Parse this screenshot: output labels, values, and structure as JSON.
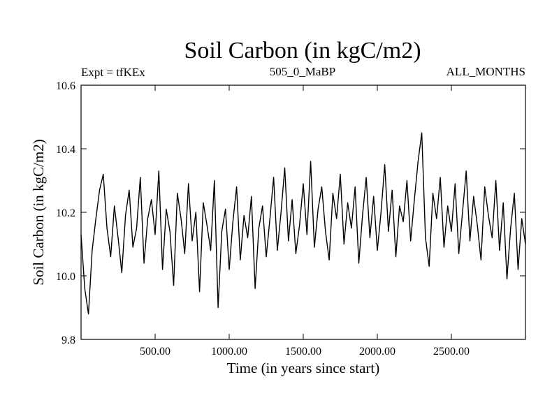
{
  "chart_data": {
    "type": "line",
    "title": "Soil Carbon (in kgC/m2)",
    "subtitle_left": "Expt = tfKEx",
    "subtitle_center": "505_0_MaBP",
    "subtitle_right": "ALL_MONTHS",
    "xlabel": "Time (in years since start)",
    "ylabel": "Soil Carbon (in kgC/m2)",
    "xlim": [
      0,
      3000
    ],
    "ylim": [
      9.8,
      10.6
    ],
    "x_ticks": [
      500,
      1000,
      1500,
      2000,
      2500
    ],
    "x_tick_labels": [
      "500.00",
      "1000.00",
      "1500.00",
      "2000.00",
      "2500.00"
    ],
    "y_ticks": [
      9.8,
      10.0,
      10.2,
      10.4,
      10.6
    ],
    "y_tick_labels": [
      "9.8",
      "10.0",
      "10.2",
      "10.4",
      "10.6"
    ],
    "grid": false,
    "line_color": "#000000",
    "series": [
      {
        "x": [
          0,
          25,
          50,
          75,
          100,
          125,
          150,
          175,
          200,
          225,
          250,
          275,
          300,
          325,
          350,
          375,
          400,
          425,
          450,
          475,
          500,
          525,
          550,
          575,
          600,
          625,
          650,
          675,
          700,
          725,
          750,
          775,
          800,
          825,
          850,
          875,
          900,
          925,
          950,
          975,
          1000,
          1025,
          1050,
          1075,
          1100,
          1125,
          1150,
          1175,
          1200,
          1225,
          1250,
          1275,
          1300,
          1325,
          1350,
          1375,
          1400,
          1425,
          1450,
          1475,
          1500,
          1525,
          1550,
          1575,
          1600,
          1625,
          1650,
          1675,
          1700,
          1725,
          1750,
          1775,
          1800,
          1825,
          1850,
          1875,
          1900,
          1925,
          1950,
          1975,
          2000,
          2025,
          2050,
          2075,
          2100,
          2125,
          2150,
          2175,
          2200,
          2225,
          2250,
          2275,
          2300,
          2325,
          2350,
          2375,
          2400,
          2425,
          2450,
          2475,
          2500,
          2525,
          2550,
          2575,
          2600,
          2625,
          2650,
          2675,
          2700,
          2725,
          2750,
          2775,
          2800,
          2825,
          2850,
          2875,
          2900,
          2925,
          2950,
          2975,
          3000
        ],
        "y": [
          10.13,
          9.96,
          9.88,
          10.08,
          10.18,
          10.27,
          10.32,
          10.15,
          10.06,
          10.22,
          10.12,
          10.01,
          10.19,
          10.27,
          10.09,
          10.15,
          10.31,
          10.04,
          10.18,
          10.24,
          10.13,
          10.33,
          10.02,
          10.21,
          10.14,
          9.97,
          10.26,
          10.18,
          10.07,
          10.29,
          10.11,
          10.2,
          9.95,
          10.23,
          10.16,
          10.08,
          10.3,
          9.9,
          10.14,
          10.21,
          10.02,
          10.17,
          10.28,
          10.05,
          10.19,
          10.12,
          10.25,
          9.96,
          10.15,
          10.22,
          10.06,
          10.18,
          10.31,
          10.08,
          10.2,
          10.34,
          10.11,
          10.24,
          10.07,
          10.16,
          10.29,
          10.13,
          10.36,
          10.09,
          10.21,
          10.28,
          10.14,
          10.05,
          10.26,
          10.18,
          10.32,
          10.1,
          10.23,
          10.15,
          10.28,
          10.04,
          10.19,
          10.31,
          10.12,
          10.25,
          10.08,
          10.2,
          10.35,
          10.14,
          10.27,
          10.06,
          10.22,
          10.17,
          10.3,
          10.11,
          10.24,
          10.36,
          10.45,
          10.12,
          10.03,
          10.26,
          10.18,
          10.31,
          10.09,
          10.22,
          10.14,
          10.29,
          10.07,
          10.2,
          10.33,
          10.11,
          10.25,
          10.16,
          10.05,
          10.28,
          10.19,
          10.12,
          10.3,
          10.08,
          10.23,
          9.99,
          10.15,
          10.26,
          10.02,
          10.18,
          10.1
        ]
      }
    ]
  }
}
